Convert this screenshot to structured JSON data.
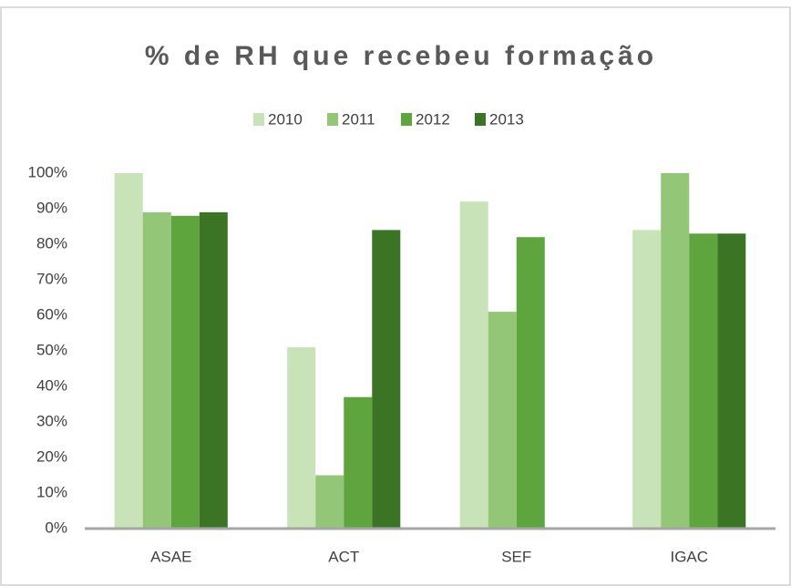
{
  "chart_data": {
    "type": "bar",
    "title": "% de RH que recebeu formação",
    "categories": [
      "ASAE",
      "ACT",
      "SEF",
      "IGAC"
    ],
    "series": [
      {
        "name": "2010",
        "color": "#c9e3b8",
        "values": [
          100,
          51,
          92,
          84
        ]
      },
      {
        "name": "2011",
        "color": "#93c777",
        "values": [
          89,
          15,
          61,
          100
        ]
      },
      {
        "name": "2012",
        "color": "#5ea53d",
        "values": [
          88,
          37,
          82,
          83
        ]
      },
      {
        "name": "2013",
        "color": "#3a7424",
        "values": [
          89,
          84,
          null,
          83
        ]
      }
    ],
    "ylim": [
      0,
      100
    ],
    "yticks": [
      {
        "value": 0,
        "label": "0%"
      },
      {
        "value": 10,
        "label": "10%"
      },
      {
        "value": 20,
        "label": "20%"
      },
      {
        "value": 30,
        "label": "30%"
      },
      {
        "value": 40,
        "label": "40%"
      },
      {
        "value": 50,
        "label": "50%"
      },
      {
        "value": 60,
        "label": "60%"
      },
      {
        "value": 70,
        "label": "70%"
      },
      {
        "value": 80,
        "label": "80%"
      },
      {
        "value": 90,
        "label": "90%"
      },
      {
        "value": 100,
        "label": "100%"
      }
    ],
    "legend": "top",
    "grid": false
  }
}
